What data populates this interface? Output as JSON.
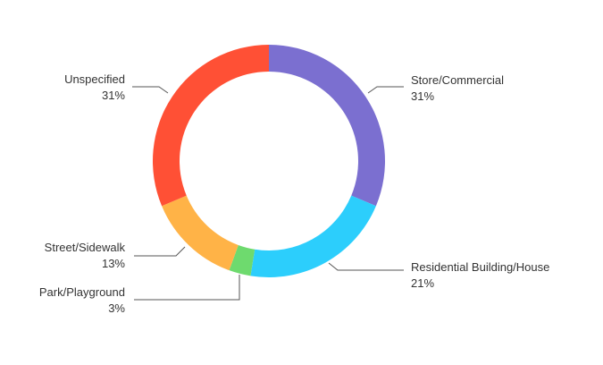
{
  "chart_data": {
    "type": "pie",
    "variant": "donut",
    "start": "top",
    "direction": "clockwise",
    "slices": [
      {
        "label": "Store/Commercial",
        "value": 31,
        "value_label": "31%",
        "color": "#7B6FD0"
      },
      {
        "label": "Residential Building/House",
        "value": 21,
        "value_label": "21%",
        "color": "#2CCEFC"
      },
      {
        "label": "Park/Playground",
        "value": 3,
        "value_label": "3%",
        "color": "#6EDA6E"
      },
      {
        "label": "Street/Sidewalk",
        "value": 13,
        "value_label": "13%",
        "color": "#FFB347"
      },
      {
        "label": "Unspecified",
        "value": 31,
        "value_label": "31%",
        "color": "#FF5035"
      }
    ]
  }
}
